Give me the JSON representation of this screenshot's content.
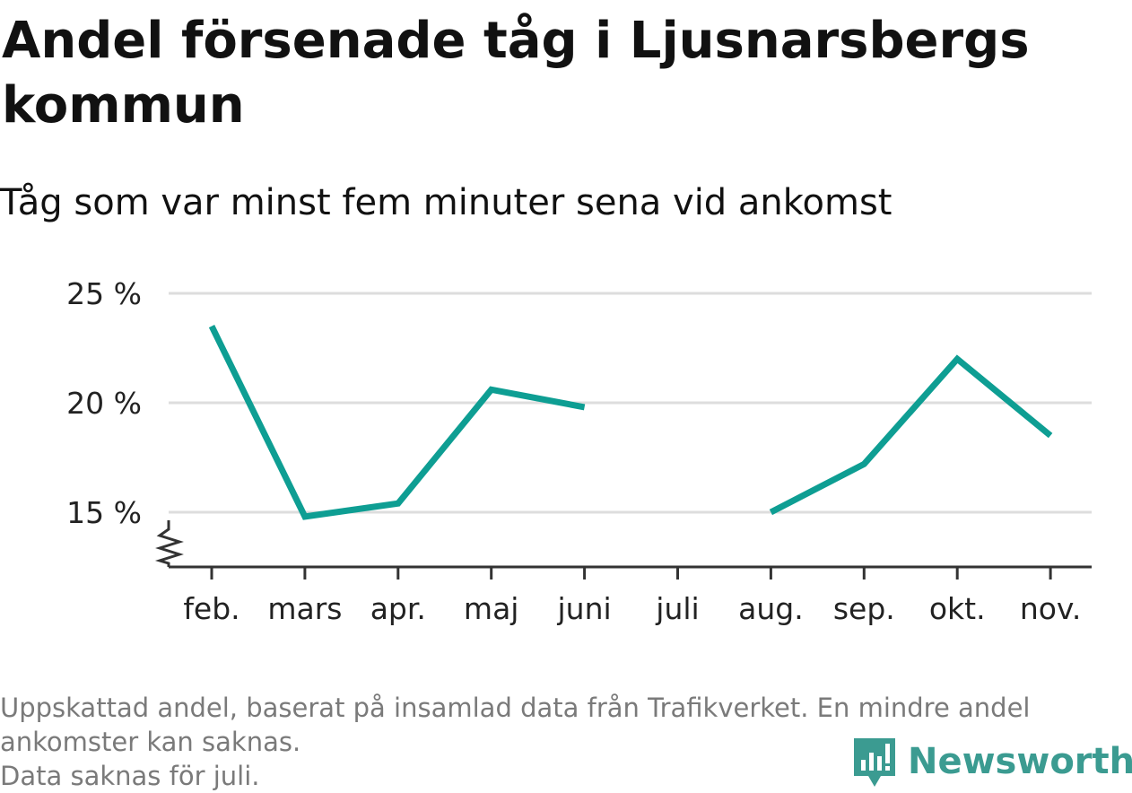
{
  "title": "Andel försenade tåg i Ljusnarsbergs kommun",
  "subtitle": "Tåg som var minst fem minuter sena vid ankomst",
  "footer": {
    "line1": "Uppskattad andel, baserat på insamlad data från Trafikverket. En mindre andel",
    "line2": "ankomster kan saknas.",
    "line3": "Data saknas för juli."
  },
  "brand": {
    "name": "Newsworthy",
    "color": "#3b9b91"
  },
  "chart_data": {
    "type": "line",
    "categories": [
      "feb.",
      "mars",
      "apr.",
      "maj",
      "juni",
      "juli",
      "aug.",
      "sep.",
      "okt.",
      "nov."
    ],
    "series": [
      {
        "values": [
          23.5,
          14.8,
          15.4,
          20.6,
          19.8,
          null,
          15.0,
          17.2,
          22.0,
          18.5
        ],
        "color": "#0e9e93"
      }
    ],
    "yticks": [
      {
        "value": 15,
        "label": "15 %"
      },
      {
        "value": 20,
        "label": "20 %"
      },
      {
        "value": 25,
        "label": "25 %"
      }
    ],
    "ylim": [
      12.5,
      25
    ],
    "y_axis_broken": true,
    "grid": true,
    "xlabel": "",
    "ylabel": ""
  }
}
